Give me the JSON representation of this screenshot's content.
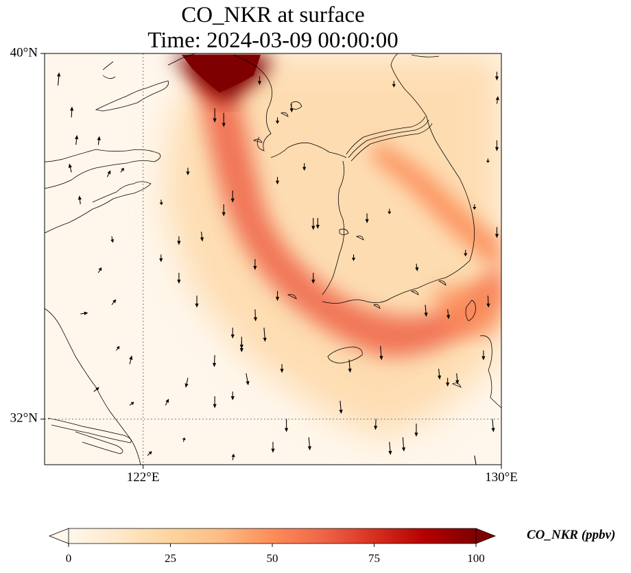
{
  "title": {
    "line1": "CO_NKR at surface",
    "line2": "Time: 2024-03-09 00:00:00"
  },
  "map": {
    "lon_range": [
      119.8,
      130.0
    ],
    "lat_range": [
      31.0,
      40.0
    ],
    "lon_ticks": [
      {
        "value": 122,
        "label": "122°E"
      },
      {
        "value": 130,
        "label": "130°E"
      }
    ],
    "lat_ticks": [
      {
        "value": 40,
        "label": "40°N"
      },
      {
        "value": 32,
        "label": "32°N"
      }
    ],
    "gridlines": "dotted"
  },
  "colorbar": {
    "label": "CO_NKR (ppbv)",
    "range": [
      0,
      100
    ],
    "extend": "both",
    "ticks": [
      {
        "value": 0,
        "label": "0"
      },
      {
        "value": 25,
        "label": "25"
      },
      {
        "value": 50,
        "label": "50"
      },
      {
        "value": 75,
        "label": "75"
      },
      {
        "value": 100,
        "label": "100"
      }
    ],
    "colormap": "OrRd",
    "stops": [
      "#fff7ec",
      "#fee8c8",
      "#fdd49e",
      "#fdbb84",
      "#fc8d59",
      "#ef6548",
      "#d7301f",
      "#b30000",
      "#7f0000"
    ]
  },
  "field": {
    "plume": {
      "core_color": "#7f0000",
      "band_color": "#ef6548",
      "band_light_color": "#fc8d59"
    }
  },
  "wind": {
    "arrow_color": "#000000",
    "vectors": [
      {
        "lon": 120.1,
        "lat": 39.3,
        "u": 0.1,
        "v": 1.2
      },
      {
        "lon": 120.4,
        "lat": 38.6,
        "u": 0.05,
        "v": 1.0
      },
      {
        "lon": 120.5,
        "lat": 38.0,
        "u": 0.1,
        "v": 0.9
      },
      {
        "lon": 120.4,
        "lat": 37.4,
        "u": -0.2,
        "v": 0.8
      },
      {
        "lon": 120.6,
        "lat": 36.7,
        "u": -0.1,
        "v": 0.8
      },
      {
        "lon": 121.0,
        "lat": 38.0,
        "u": 0.1,
        "v": 0.8
      },
      {
        "lon": 121.2,
        "lat": 37.3,
        "u": 0.3,
        "v": 0.6
      },
      {
        "lon": 121.5,
        "lat": 37.4,
        "u": 0.3,
        "v": 0.4
      },
      {
        "lon": 121.3,
        "lat": 36.0,
        "u": 0.1,
        "v": -0.6
      },
      {
        "lon": 121.0,
        "lat": 35.2,
        "u": 0.3,
        "v": 0.5
      },
      {
        "lon": 120.6,
        "lat": 34.3,
        "u": 0.7,
        "v": 0.1
      },
      {
        "lon": 121.3,
        "lat": 34.5,
        "u": 0.4,
        "v": 0.5
      },
      {
        "lon": 121.4,
        "lat": 33.5,
        "u": 0.3,
        "v": 0.4
      },
      {
        "lon": 121.7,
        "lat": 33.2,
        "u": 0.2,
        "v": 0.8
      },
      {
        "lon": 120.9,
        "lat": 32.6,
        "u": 0.5,
        "v": 0.4
      },
      {
        "lon": 121.7,
        "lat": 32.3,
        "u": 0.4,
        "v": 0.3
      },
      {
        "lon": 122.1,
        "lat": 31.2,
        "u": 0.4,
        "v": 0.4
      },
      {
        "lon": 122.4,
        "lat": 35.6,
        "u": 0.0,
        "v": -0.7
      },
      {
        "lon": 122.8,
        "lat": 36.0,
        "u": 0.0,
        "v": -0.8
      },
      {
        "lon": 122.4,
        "lat": 36.8,
        "u": 0.05,
        "v": -0.5
      },
      {
        "lon": 123.0,
        "lat": 37.5,
        "u": 0.0,
        "v": -0.7
      },
      {
        "lon": 123.3,
        "lat": 36.1,
        "u": 0.1,
        "v": -0.9
      },
      {
        "lon": 122.8,
        "lat": 35.2,
        "u": 0.0,
        "v": -1.0
      },
      {
        "lon": 123.2,
        "lat": 34.7,
        "u": 0.0,
        "v": -1.1
      },
      {
        "lon": 123.0,
        "lat": 32.9,
        "u": -0.2,
        "v": -0.9
      },
      {
        "lon": 122.5,
        "lat": 32.3,
        "u": 0.3,
        "v": 0.6
      },
      {
        "lon": 122.9,
        "lat": 31.5,
        "u": 0.1,
        "v": 0.4
      },
      {
        "lon": 123.6,
        "lat": 33.4,
        "u": -0.05,
        "v": -1.1
      },
      {
        "lon": 123.6,
        "lat": 32.5,
        "u": 0.0,
        "v": -1.1
      },
      {
        "lon": 124.0,
        "lat": 32.6,
        "u": 0.0,
        "v": -0.8
      },
      {
        "lon": 124.3,
        "lat": 33.0,
        "u": 0.2,
        "v": -1.1
      },
      {
        "lon": 124.2,
        "lat": 33.8,
        "u": 0.0,
        "v": -1.1
      },
      {
        "lon": 124.0,
        "lat": 34.0,
        "u": 0.0,
        "v": -1.0
      },
      {
        "lon": 124.0,
        "lat": 31.1,
        "u": 0.1,
        "v": 0.6
      },
      {
        "lon": 123.8,
        "lat": 36.7,
        "u": 0.0,
        "v": -1.1
      },
      {
        "lon": 123.6,
        "lat": 38.8,
        "u": 0.0,
        "v": -1.3
      },
      {
        "lon": 123.8,
        "lat": 38.7,
        "u": 0.0,
        "v": -1.3
      },
      {
        "lon": 124.0,
        "lat": 37.0,
        "u": 0.0,
        "v": -1.1
      },
      {
        "lon": 124.6,
        "lat": 39.5,
        "u": 0.0,
        "v": -0.8
      },
      {
        "lon": 125.0,
        "lat": 38.6,
        "u": 0.0,
        "v": -0.6
      },
      {
        "lon": 125.0,
        "lat": 37.3,
        "u": 0.0,
        "v": -0.7
      },
      {
        "lon": 124.9,
        "lat": 31.5,
        "u": 0.0,
        "v": -1.0
      },
      {
        "lon": 125.6,
        "lat": 37.6,
        "u": 0.0,
        "v": -0.7
      },
      {
        "lon": 125.8,
        "lat": 36.4,
        "u": 0.0,
        "v": -1.1
      },
      {
        "lon": 125.8,
        "lat": 35.2,
        "u": 0.0,
        "v": -1.0
      },
      {
        "lon": 124.5,
        "lat": 35.5,
        "u": 0.0,
        "v": -1.0
      },
      {
        "lon": 124.2,
        "lat": 33.7,
        "u": 0.0,
        "v": -1.0
      },
      {
        "lon": 124.5,
        "lat": 34.4,
        "u": 0.05,
        "v": -1.1
      },
      {
        "lon": 124.7,
        "lat": 34.0,
        "u": 0.1,
        "v": -1.3
      },
      {
        "lon": 125.1,
        "lat": 33.2,
        "u": 0.0,
        "v": -0.8
      },
      {
        "lon": 125.0,
        "lat": 34.8,
        "u": 0.0,
        "v": -0.9
      },
      {
        "lon": 125.2,
        "lat": 32.0,
        "u": 0.0,
        "v": -1.2
      },
      {
        "lon": 125.7,
        "lat": 31.6,
        "u": 0.1,
        "v": -1.2
      },
      {
        "lon": 125.9,
        "lat": 36.4,
        "u": 0.0,
        "v": -1.0
      },
      {
        "lon": 126.6,
        "lat": 33.3,
        "u": 0.1,
        "v": -1.2
      },
      {
        "lon": 126.4,
        "lat": 32.4,
        "u": 0.1,
        "v": -1.2
      },
      {
        "lon": 126.7,
        "lat": 35.6,
        "u": 0.0,
        "v": -0.6
      },
      {
        "lon": 127.0,
        "lat": 36.5,
        "u": 0.0,
        "v": -0.9
      },
      {
        "lon": 127.2,
        "lat": 32.0,
        "u": -0.05,
        "v": -1.0
      },
      {
        "lon": 127.5,
        "lat": 31.5,
        "u": 0.1,
        "v": -1.2
      },
      {
        "lon": 127.8,
        "lat": 31.6,
        "u": 0.1,
        "v": -1.3
      },
      {
        "lon": 128.1,
        "lat": 31.9,
        "u": 0.0,
        "v": -1.2
      },
      {
        "lon": 127.3,
        "lat": 33.6,
        "u": 0.1,
        "v": -1.3
      },
      {
        "lon": 127.5,
        "lat": 36.6,
        "u": 0.0,
        "v": -0.5
      },
      {
        "lon": 127.6,
        "lat": 39.4,
        "u": 0.0,
        "v": -0.6
      },
      {
        "lon": 128.1,
        "lat": 35.4,
        "u": 0.1,
        "v": -0.7
      },
      {
        "lon": 128.3,
        "lat": 34.5,
        "u": 0.1,
        "v": -1.1
      },
      {
        "lon": 128.8,
        "lat": 34.4,
        "u": 0.1,
        "v": -0.9
      },
      {
        "lon": 128.6,
        "lat": 33.1,
        "u": 0.1,
        "v": -1.0
      },
      {
        "lon": 128.8,
        "lat": 32.9,
        "u": 0.0,
        "v": -0.8
      },
      {
        "lon": 129.0,
        "lat": 33.0,
        "u": 0.1,
        "v": -1.0
      },
      {
        "lon": 129.4,
        "lat": 31.2,
        "u": 0.2,
        "v": -1.2
      },
      {
        "lon": 129.8,
        "lat": 32.0,
        "u": 0.1,
        "v": -1.2
      },
      {
        "lon": 129.6,
        "lat": 33.5,
        "u": 0.0,
        "v": -0.9
      },
      {
        "lon": 129.7,
        "lat": 34.7,
        "u": 0.05,
        "v": -1.1
      },
      {
        "lon": 129.2,
        "lat": 35.7,
        "u": 0.0,
        "v": -0.6
      },
      {
        "lon": 129.4,
        "lat": 36.7,
        "u": 0.0,
        "v": -0.5
      },
      {
        "lon": 129.7,
        "lat": 37.7,
        "u": 0.0,
        "v": -0.4
      },
      {
        "lon": 129.9,
        "lat": 39.6,
        "u": 0.0,
        "v": -0.8
      },
      {
        "lon": 129.9,
        "lat": 38.9,
        "u": 0.1,
        "v": 0.7
      },
      {
        "lon": 129.9,
        "lat": 38.1,
        "u": 0.0,
        "v": -1.0
      },
      {
        "lon": 129.9,
        "lat": 36.2,
        "u": 0.0,
        "v": -1.0
      },
      {
        "lon": 125.3,
        "lat": 38.9,
        "u": 0.1,
        "v": -0.8
      }
    ]
  }
}
